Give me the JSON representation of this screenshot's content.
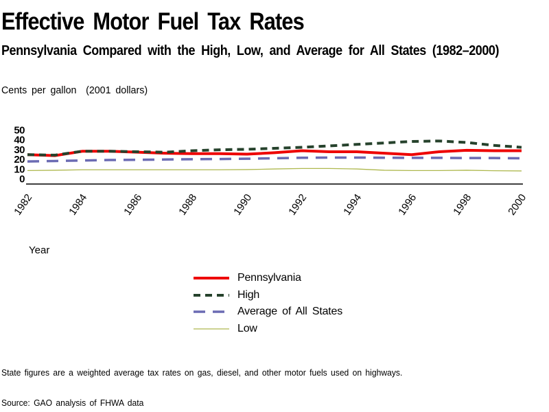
{
  "chart_data": {
    "type": "line",
    "title": "Effective Motor Fuel Tax Rates",
    "subtitle": "Pennsylvania Compared with the High, Low, and Average for All States (1982–2000)",
    "units_label": "Cents per gallon  (2001 dollars)",
    "xlabel": "Year",
    "ylabel": "Cents per gallon (2001 dollars)",
    "x": [
      1982,
      1983,
      1984,
      1985,
      1986,
      1987,
      1988,
      1989,
      1990,
      1991,
      1992,
      1993,
      1994,
      1995,
      1996,
      1997,
      1998,
      1999,
      2000
    ],
    "x_tick_labels": [
      "1982",
      "1984",
      "1986",
      "1988",
      "1990",
      "1992",
      "1994",
      "1996",
      "1998",
      "2000"
    ],
    "y_ticks": [
      0,
      10,
      20,
      30,
      40,
      50
    ],
    "ylim": [
      0,
      50
    ],
    "grid": false,
    "legend_position": "bottom-center",
    "axis_color": "#000000",
    "series": [
      {
        "name": "Pennsylvania",
        "color": "#ee0000",
        "line_style": "solid",
        "stroke_width": 4,
        "values": [
          24.5,
          23.5,
          28,
          28,
          27,
          26,
          25.5,
          25.5,
          25,
          26.5,
          28.5,
          27.5,
          27.5,
          26,
          24.5,
          27.5,
          29,
          28.5,
          28.5
        ]
      },
      {
        "name": "High",
        "color": "#26422c",
        "line_style": "dashed",
        "dash": "10 7",
        "stroke_width": 4,
        "values": [
          24.5,
          24,
          28,
          28,
          27.5,
          27,
          28.5,
          29.5,
          30,
          31,
          32,
          33.5,
          35,
          36.5,
          38,
          38.5,
          37,
          34,
          32
        ]
      },
      {
        "name": "Average of All States",
        "color": "#6b6bb3",
        "line_style": "long-dash",
        "dash": "17 11",
        "stroke_width": 3.5,
        "values": [
          17.5,
          18,
          18.5,
          19,
          19.2,
          19.5,
          19.8,
          20,
          20.3,
          20.8,
          21.3,
          21.5,
          21.5,
          21.3,
          21.2,
          21.2,
          21,
          21,
          20.8
        ]
      },
      {
        "name": "Low",
        "color": "#aeb84e",
        "line_style": "solid",
        "stroke_width": 1.3,
        "values": [
          8.2,
          8.5,
          9,
          9,
          9,
          9,
          9,
          9,
          9.2,
          9.8,
          10.3,
          10.3,
          9.8,
          8.5,
          8.2,
          8.2,
          8.5,
          8,
          7.8
        ]
      }
    ]
  },
  "footnotes": {
    "note": "State figures are a weighted average tax rates on gas, diesel, and other motor fuels used on highways.",
    "source": "Source: GAO analysis of FHWA data"
  }
}
